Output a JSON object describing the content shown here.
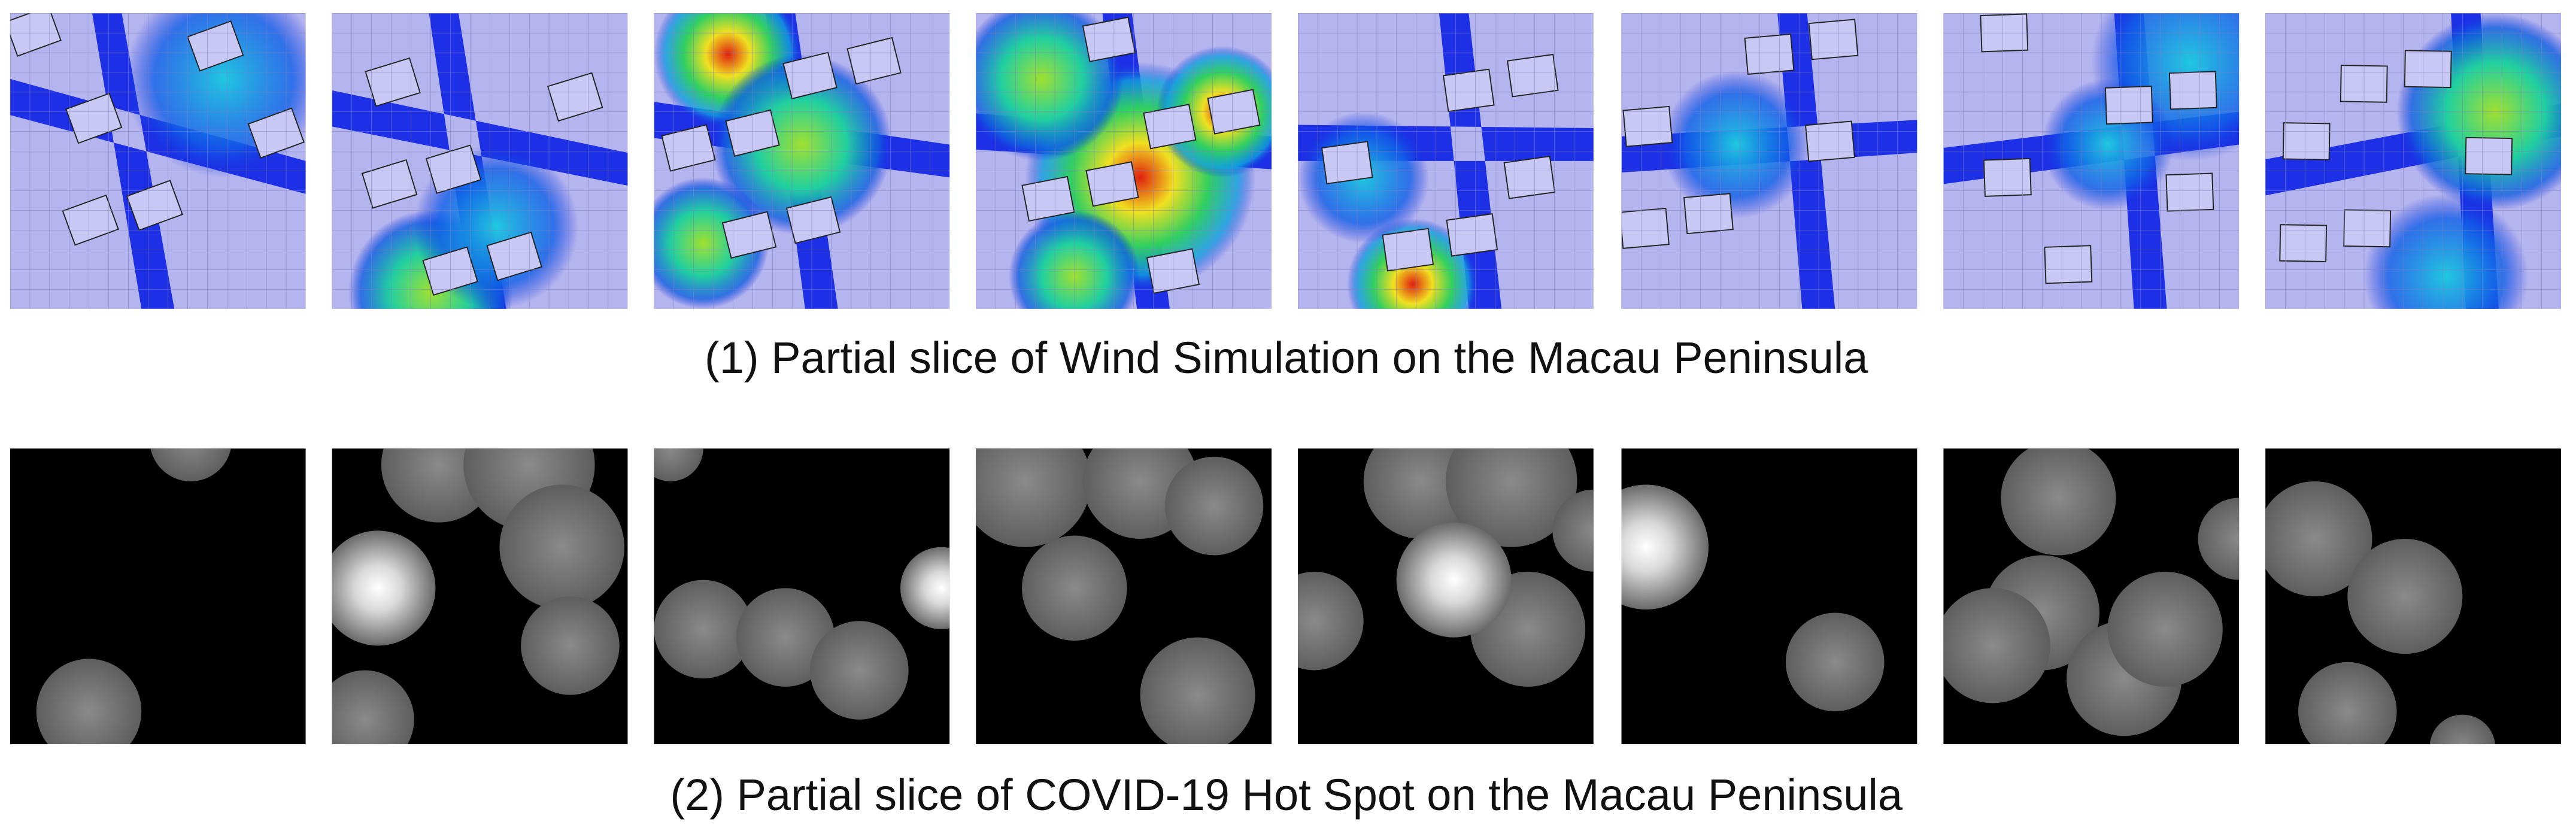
{
  "figure": {
    "captions": [
      "(1) Partial slice of Wind Simulation on the Macau Peninsula",
      "(2) Partial slice of COVID-19 Hot Spot on the Macau Peninsula"
    ]
  }
}
